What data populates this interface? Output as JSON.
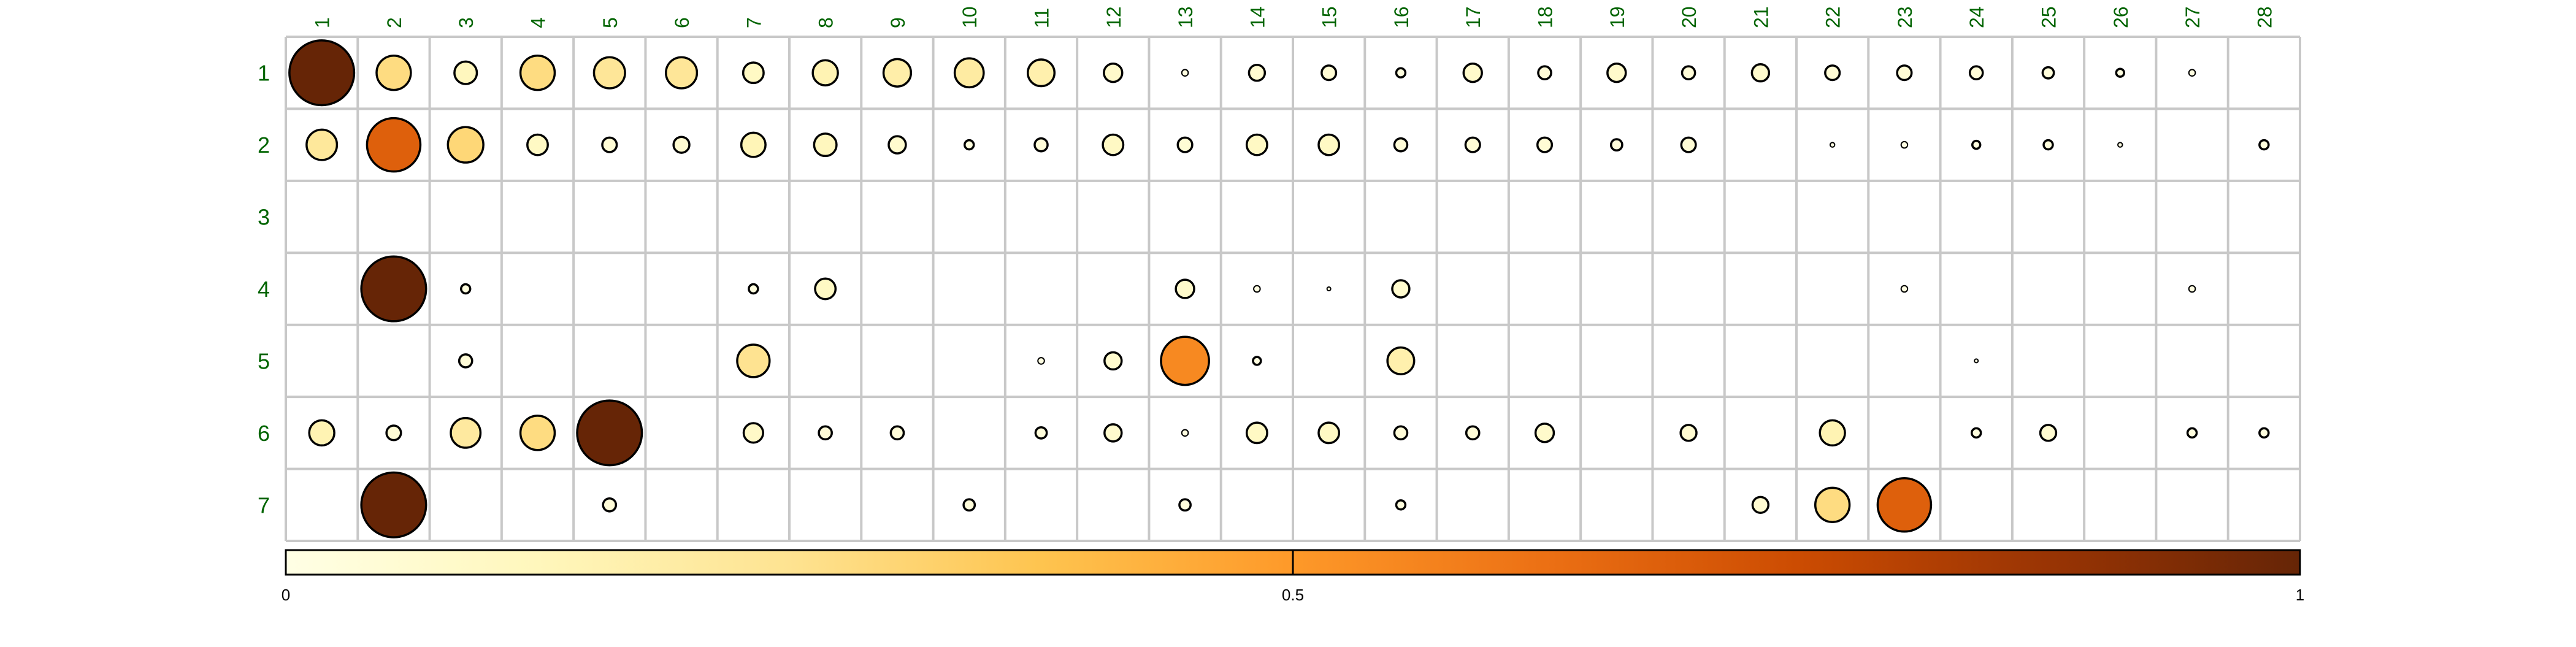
{
  "chart_data": {
    "type": "heatmap",
    "subtype": "circle correlation matrix",
    "title": "",
    "xlabel": "",
    "ylabel": "",
    "x_labels": [
      "1",
      "2",
      "3",
      "4",
      "5",
      "6",
      "7",
      "8",
      "9",
      "10",
      "11",
      "12",
      "13",
      "14",
      "15",
      "16",
      "17",
      "18",
      "19",
      "20",
      "21",
      "22",
      "23",
      "24",
      "25",
      "26",
      "27",
      "28"
    ],
    "y_labels": [
      "1",
      "2",
      "3",
      "4",
      "5",
      "6",
      "7"
    ],
    "values": [
      [
        1.0,
        0.28,
        0.12,
        0.28,
        0.23,
        0.23,
        0.1,
        0.15,
        0.18,
        0.2,
        0.17,
        0.08,
        0.01,
        0.06,
        0.05,
        0.02,
        0.08,
        0.04,
        0.08,
        0.04,
        0.07,
        0.05,
        0.05,
        0.04,
        0.03,
        0.015,
        0.01,
        null
      ],
      [
        0.22,
        0.68,
        0.3,
        0.1,
        0.05,
        0.06,
        0.14,
        0.12,
        0.07,
        0.02,
        0.04,
        0.1,
        0.05,
        0.1,
        0.1,
        0.04,
        0.05,
        0.05,
        0.03,
        0.05,
        null,
        0.005,
        0.01,
        0.015,
        0.02,
        0.005,
        null,
        0.02
      ],
      [
        null,
        null,
        null,
        null,
        null,
        null,
        null,
        null,
        null,
        null,
        null,
        null,
        null,
        null,
        null,
        null,
        null,
        null,
        null,
        null,
        null,
        null,
        null,
        null,
        null,
        null,
        null,
        null
      ],
      [
        null,
        1.0,
        0.02,
        null,
        null,
        null,
        0.02,
        0.1,
        null,
        null,
        null,
        null,
        0.08,
        0.01,
        0.003,
        0.07,
        null,
        null,
        null,
        null,
        null,
        null,
        0.01,
        null,
        null,
        null,
        0.01,
        null
      ],
      [
        null,
        null,
        0.04,
        null,
        null,
        null,
        0.25,
        null,
        null,
        null,
        0.01,
        0.07,
        0.55,
        0.015,
        null,
        0.17,
        null,
        null,
        null,
        null,
        null,
        null,
        null,
        0.003,
        null,
        null,
        null,
        null
      ],
      [
        0.15,
        0.05,
        0.21,
        0.28,
        1.0,
        null,
        0.09,
        0.04,
        0.04,
        null,
        0.03,
        0.07,
        0.01,
        0.1,
        0.1,
        0.04,
        0.04,
        0.08,
        null,
        0.06,
        null,
        0.15,
        null,
        0.02,
        0.06,
        null,
        0.02,
        0.02
      ],
      [
        null,
        1.0,
        null,
        null,
        0.04,
        null,
        null,
        null,
        null,
        0.03,
        null,
        null,
        0.03,
        null,
        null,
        0.02,
        null,
        null,
        null,
        null,
        0.06,
        0.28,
        0.68,
        null,
        null,
        null,
        null,
        null
      ]
    ],
    "colorbar": {
      "min": 0,
      "max": 1,
      "tick_labels": [
        "0",
        "0.5",
        "1"
      ],
      "orientation": "horizontal",
      "placement": "bottom"
    },
    "colormap": [
      "#ffffe5",
      "#fff7bc",
      "#fee391",
      "#fec44f",
      "#fe9929",
      "#ec7014",
      "#cc4c02",
      "#993404",
      "#662506"
    ],
    "label_color": "#006400",
    "grid_color": "#c8c8c8",
    "marker_outline": "#000000",
    "grid": true
  }
}
